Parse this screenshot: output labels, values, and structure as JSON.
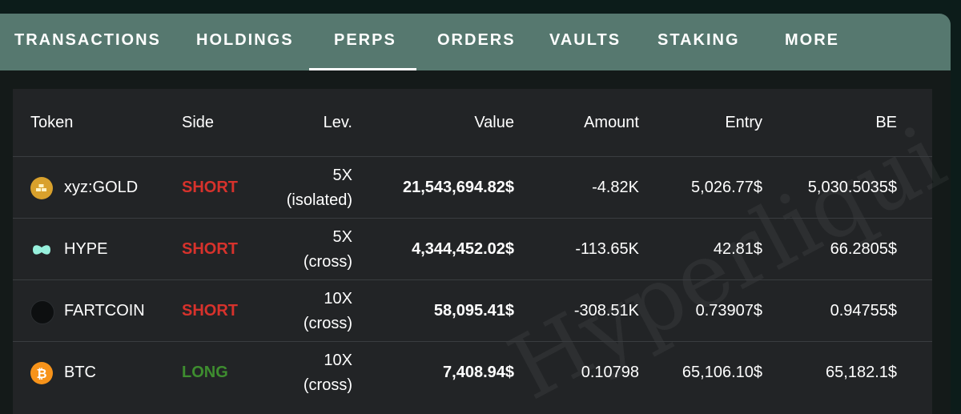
{
  "tabs": [
    {
      "label": "TRANSACTIONS"
    },
    {
      "label": "HOLDINGS"
    },
    {
      "label": "PERPS"
    },
    {
      "label": "ORDERS"
    },
    {
      "label": "VAULTS"
    },
    {
      "label": "STAKING"
    },
    {
      "label": "MORE"
    }
  ],
  "active_tab": "PERPS",
  "columns": [
    "Token",
    "Side",
    "Lev.",
    "Value",
    "Amount",
    "Entry",
    "BE"
  ],
  "rows": [
    {
      "token": "xyz:GOLD",
      "icon": "gold-bars-icon",
      "side": "SHORT",
      "lev": "5X",
      "margin": "(isolated)",
      "value": "21,543,694.82$",
      "amount": "-4.82K",
      "entry": "5,026.77$",
      "be": "5,030.5035$"
    },
    {
      "token": "HYPE",
      "icon": "hype-logo-icon",
      "side": "SHORT",
      "lev": "5X",
      "margin": "(cross)",
      "value": "4,344,452.02$",
      "amount": "-113.65K",
      "entry": "42.81$",
      "be": "66.2805$"
    },
    {
      "token": "FARTCOIN",
      "icon": "fartcoin-logo-icon",
      "side": "SHORT",
      "lev": "10X",
      "margin": "(cross)",
      "value": "58,095.41$",
      "amount": "-308.51K",
      "entry": "0.73907$",
      "be": "0.94755$"
    },
    {
      "token": "BTC",
      "icon": "bitcoin-icon",
      "side": "LONG",
      "lev": "10X",
      "margin": "(cross)",
      "value": "7,408.94$",
      "amount": "0.10798",
      "entry": "65,106.10$",
      "be": "65,182.1$"
    }
  ],
  "watermark": "Hyperliqui",
  "colors": {
    "tabbar": "#56786f",
    "short": "#d7322c",
    "long": "#3e8d2f",
    "table_bg": "#222426"
  }
}
